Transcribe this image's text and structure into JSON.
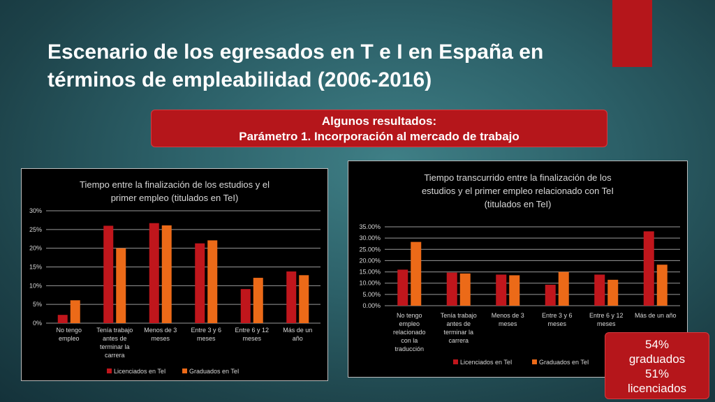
{
  "slide": {
    "title_line1": "Escenario de los egresados en T e I  en España en",
    "title_line2": "términos de empleabilidad (2006-2016)",
    "accent_color": "#b5161b"
  },
  "callout": {
    "line1": "Algunos resultados:",
    "line2": "Parámetro 1. Incorporación al mercado de trabajo"
  },
  "badge": {
    "line1": "54%",
    "line2": "graduados",
    "line3": "51%",
    "line4": "licenciados"
  },
  "chart_data": [
    {
      "type": "bar",
      "title_lines": [
        "Tiempo entre la finalización de los estudios y el",
        "primer empleo (titulados en TeI)"
      ],
      "categories": [
        [
          "No tengo",
          "empleo"
        ],
        [
          "Tenía trabajo",
          "antes de",
          "terminar la",
          "carrera"
        ],
        [
          "Menos de 3",
          "meses"
        ],
        [
          "Entre 3 y 6",
          "meses"
        ],
        [
          "Entre 6 y 12",
          "meses"
        ],
        [
          "Más de un",
          "año"
        ]
      ],
      "series": [
        {
          "name": "Licenciados en TeI",
          "color": "#c0161c",
          "values": [
            2.2,
            26,
            26.7,
            21.3,
            9.1,
            13.8
          ]
        },
        {
          "name": "Graduados en TeI",
          "color": "#ec6a18",
          "values": [
            6.1,
            20,
            26.1,
            22.1,
            12.1,
            12.8
          ]
        }
      ],
      "y_ticks": [
        "0%",
        "5%",
        "10%",
        "15%",
        "20%",
        "25%",
        "30%"
      ],
      "ylim": [
        0,
        30
      ],
      "grid": true,
      "legend": "bottom"
    },
    {
      "type": "bar",
      "title_lines": [
        "Tiempo transcurrido entre la finalización de los",
        "estudios y el primer empleo relacionado con TeI",
        "(titulados en TeI)"
      ],
      "categories": [
        [
          "No tengo",
          "empleo",
          "relacionado",
          "con la",
          "traducción"
        ],
        [
          "Tenía trabajo",
          "antes de",
          "terminar la",
          "carrera"
        ],
        [
          "Menos de 3",
          "meses"
        ],
        [
          "Entre 3 y 6",
          "meses"
        ],
        [
          "Entre 6 y 12",
          "meses"
        ],
        [
          "Más de un año"
        ]
      ],
      "series": [
        {
          "name": "Licenciados en TeI",
          "color": "#c0161c",
          "values": [
            16,
            14.7,
            13.8,
            9.3,
            13.8,
            33
          ]
        },
        {
          "name": "Graduados en TeI",
          "color": "#ec6a18",
          "values": [
            28.3,
            14.3,
            13.5,
            15,
            11.5,
            18.2
          ]
        }
      ],
      "y_ticks": [
        "0.00%",
        "5.00%",
        "10.00%",
        "15.00%",
        "20.00%",
        "25.00%",
        "30.00%",
        "35.00%"
      ],
      "ylim": [
        0,
        35
      ],
      "grid": true,
      "legend": "bottom"
    }
  ]
}
